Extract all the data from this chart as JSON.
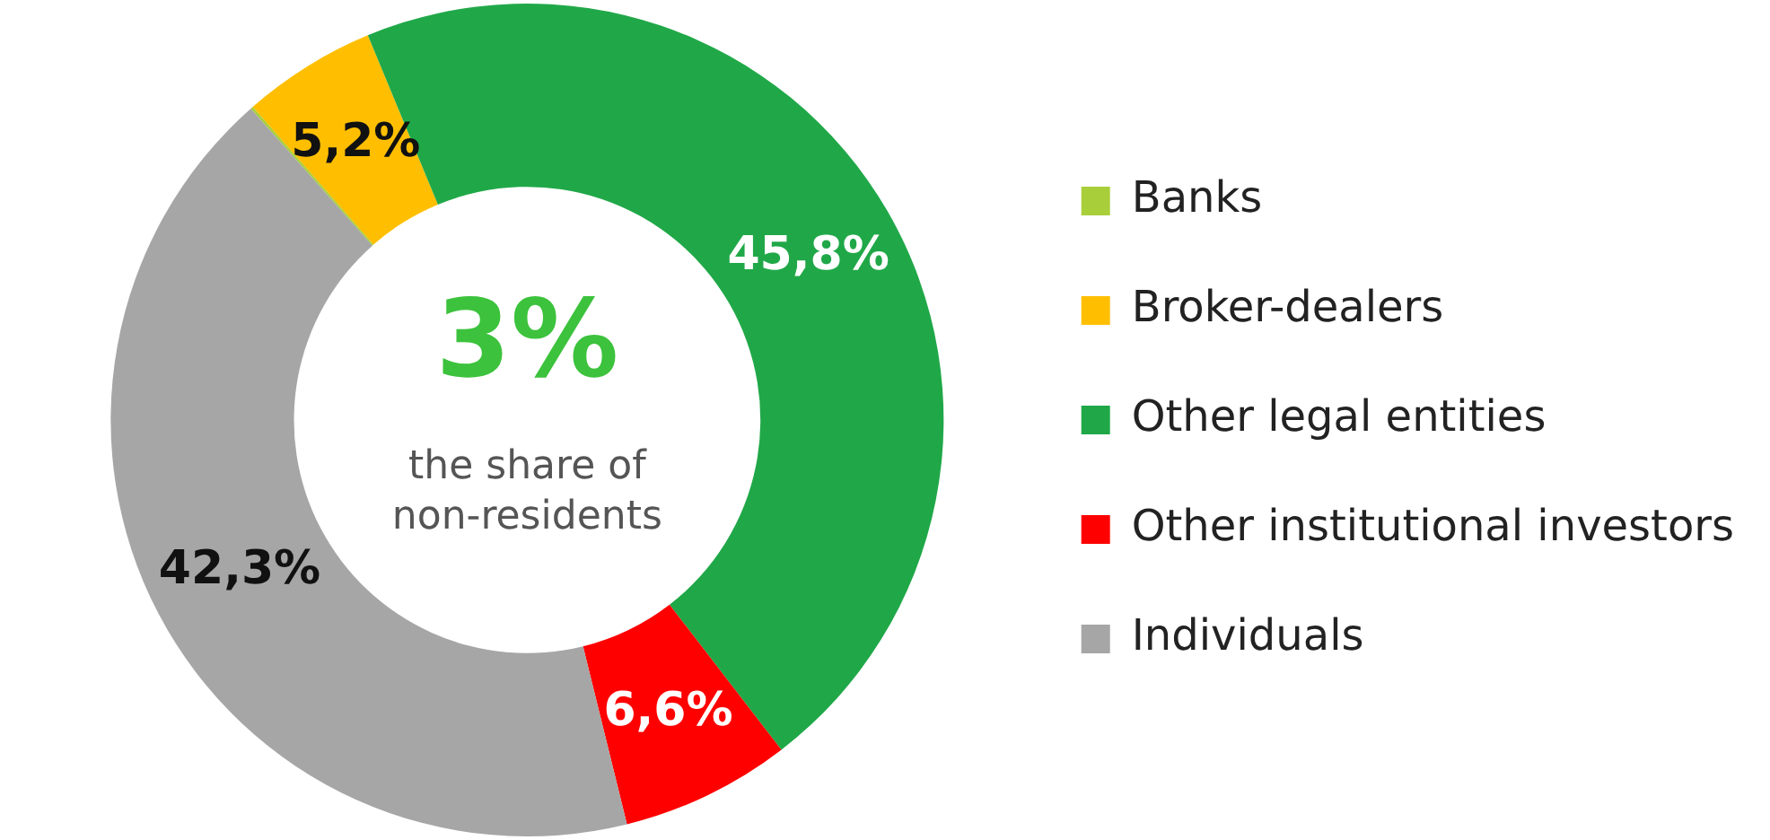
{
  "chart_data": {
    "type": "donut",
    "categories": [
      "Banks",
      "Broker-dealers",
      "Other legal entities",
      "Other institutional investors",
      "Individuals"
    ],
    "values": [
      0.1,
      5.2,
      45.8,
      6.6,
      42.3
    ],
    "value_labels": [
      null,
      "5,2%",
      "45,8%",
      "6,6%",
      "42,3%"
    ],
    "colors": [
      "#a8cf3a",
      "#ffbf00",
      "#20a848",
      "#ff0000",
      "#a6a6a6"
    ],
    "annotations": [
      "3%",
      "the share of non-residents"
    ],
    "legend": "right"
  }
}
